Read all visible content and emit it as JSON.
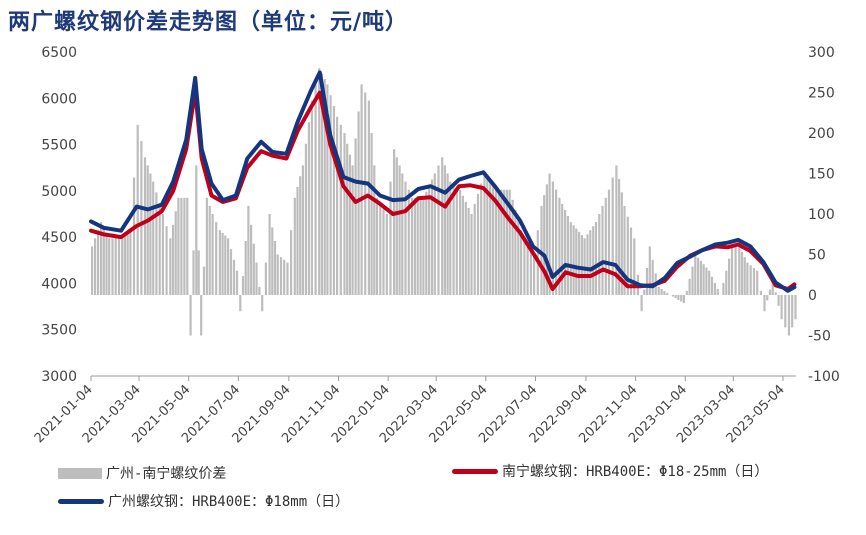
{
  "title": "两广螺纹钢价差走势图（单位：元/吨）",
  "colors": {
    "bar": "#bdbdbd",
    "nanning": "#c00018",
    "guangzhou": "#14357f",
    "title": "#1f3a7a"
  },
  "chart_data": {
    "type": "line",
    "title": "两广螺纹钢价差走势图（单位：元/吨）",
    "y_left": {
      "min": 3000,
      "max": 6500,
      "ticks": [
        "3000",
        "3500",
        "4000",
        "4500",
        "5000",
        "5500",
        "6000",
        "6500"
      ]
    },
    "y_right": {
      "min": -100,
      "max": 300,
      "ticks": [
        "-100",
        "-50",
        "0",
        "50",
        "100",
        "150",
        "200",
        "250",
        "300"
      ]
    },
    "x_range": [
      "2021-01-04",
      "2023-05-20"
    ],
    "x_ticks": [
      "2021-01-04",
      "2021-03-04",
      "2021-05-04",
      "2021-07-04",
      "2021-09-04",
      "2021-11-04",
      "2022-01-04",
      "2022-03-04",
      "2022-05-04",
      "2022-07-04",
      "2022-09-04",
      "2022-11-04",
      "2023-01-04",
      "2023-03-04",
      "2023-05-04"
    ],
    "series": [
      {
        "name": "南宁螺纹钢：HRB400E：Φ18-25mm（日）",
        "axis": "left",
        "points": [
          [
            "2021-01-04",
            4570
          ],
          [
            "2021-01-20",
            4530
          ],
          [
            "2021-02-10",
            4500
          ],
          [
            "2021-03-01",
            4620
          ],
          [
            "2021-03-15",
            4680
          ],
          [
            "2021-04-01",
            4780
          ],
          [
            "2021-04-15",
            5000
          ],
          [
            "2021-05-01",
            5450
          ],
          [
            "2021-05-12",
            6080
          ],
          [
            "2021-05-20",
            5350
          ],
          [
            "2021-06-01",
            4950
          ],
          [
            "2021-06-15",
            4880
          ],
          [
            "2021-07-01",
            4920
          ],
          [
            "2021-07-15",
            5250
          ],
          [
            "2021-08-01",
            5430
          ],
          [
            "2021-08-15",
            5380
          ],
          [
            "2021-09-01",
            5350
          ],
          [
            "2021-09-15",
            5650
          ],
          [
            "2021-10-01",
            5900
          ],
          [
            "2021-10-12",
            6060
          ],
          [
            "2021-10-25",
            5500
          ],
          [
            "2021-11-10",
            5050
          ],
          [
            "2021-11-25",
            4880
          ],
          [
            "2021-12-10",
            4950
          ],
          [
            "2021-12-25",
            4860
          ],
          [
            "2022-01-10",
            4750
          ],
          [
            "2022-01-25",
            4780
          ],
          [
            "2022-02-10",
            4920
          ],
          [
            "2022-02-25",
            4930
          ],
          [
            "2022-03-15",
            4830
          ],
          [
            "2022-04-01",
            5050
          ],
          [
            "2022-04-15",
            5060
          ],
          [
            "2022-05-01",
            5030
          ],
          [
            "2022-05-15",
            4900
          ],
          [
            "2022-06-01",
            4700
          ],
          [
            "2022-06-15",
            4550
          ],
          [
            "2022-07-01",
            4330
          ],
          [
            "2022-07-15",
            4130
          ],
          [
            "2022-07-25",
            3940
          ],
          [
            "2022-08-10",
            4120
          ],
          [
            "2022-08-25",
            4080
          ],
          [
            "2022-09-10",
            4080
          ],
          [
            "2022-09-25",
            4150
          ],
          [
            "2022-10-10",
            4100
          ],
          [
            "2022-10-25",
            3970
          ],
          [
            "2022-11-10",
            3970
          ],
          [
            "2022-11-25",
            3980
          ],
          [
            "2022-12-10",
            4030
          ],
          [
            "2022-12-25",
            4180
          ],
          [
            "2023-01-10",
            4300
          ],
          [
            "2023-01-25",
            4360
          ],
          [
            "2023-02-10",
            4400
          ],
          [
            "2023-02-25",
            4390
          ],
          [
            "2023-03-10",
            4420
          ],
          [
            "2023-03-25",
            4350
          ],
          [
            "2023-04-10",
            4210
          ],
          [
            "2023-04-25",
            3980
          ],
          [
            "2023-05-10",
            3940
          ],
          [
            "2023-05-18",
            3990
          ]
        ]
      },
      {
        "name": "广州螺纹钢：HRB400E：Φ18mm（日）",
        "axis": "left",
        "points": [
          [
            "2021-01-04",
            4670
          ],
          [
            "2021-01-20",
            4600
          ],
          [
            "2021-02-10",
            4570
          ],
          [
            "2021-03-01",
            4830
          ],
          [
            "2021-03-15",
            4800
          ],
          [
            "2021-04-01",
            4850
          ],
          [
            "2021-04-15",
            5100
          ],
          [
            "2021-05-01",
            5550
          ],
          [
            "2021-05-12",
            6220
          ],
          [
            "2021-05-20",
            5450
          ],
          [
            "2021-06-01",
            5080
          ],
          [
            "2021-06-15",
            4900
          ],
          [
            "2021-07-01",
            4950
          ],
          [
            "2021-07-15",
            5350
          ],
          [
            "2021-08-01",
            5530
          ],
          [
            "2021-08-15",
            5420
          ],
          [
            "2021-09-01",
            5400
          ],
          [
            "2021-09-15",
            5750
          ],
          [
            "2021-10-01",
            6080
          ],
          [
            "2021-10-12",
            6280
          ],
          [
            "2021-10-25",
            5600
          ],
          [
            "2021-11-10",
            5150
          ],
          [
            "2021-11-25",
            5100
          ],
          [
            "2021-12-10",
            5080
          ],
          [
            "2021-12-25",
            4950
          ],
          [
            "2022-01-10",
            4900
          ],
          [
            "2022-01-25",
            4910
          ],
          [
            "2022-02-10",
            5020
          ],
          [
            "2022-02-25",
            5050
          ],
          [
            "2022-03-15",
            4980
          ],
          [
            "2022-04-01",
            5120
          ],
          [
            "2022-04-15",
            5160
          ],
          [
            "2022-05-01",
            5200
          ],
          [
            "2022-05-15",
            5050
          ],
          [
            "2022-06-01",
            4850
          ],
          [
            "2022-06-15",
            4680
          ],
          [
            "2022-07-01",
            4400
          ],
          [
            "2022-07-15",
            4300
          ],
          [
            "2022-07-25",
            4070
          ],
          [
            "2022-08-10",
            4200
          ],
          [
            "2022-08-25",
            4170
          ],
          [
            "2022-09-10",
            4150
          ],
          [
            "2022-09-25",
            4230
          ],
          [
            "2022-10-10",
            4200
          ],
          [
            "2022-10-25",
            4040
          ],
          [
            "2022-11-10",
            3980
          ],
          [
            "2022-11-25",
            3970
          ],
          [
            "2022-12-10",
            4060
          ],
          [
            "2022-12-25",
            4220
          ],
          [
            "2023-01-10",
            4290
          ],
          [
            "2023-01-25",
            4360
          ],
          [
            "2023-02-10",
            4420
          ],
          [
            "2023-02-25",
            4440
          ],
          [
            "2023-03-10",
            4470
          ],
          [
            "2023-03-25",
            4400
          ],
          [
            "2023-04-10",
            4230
          ],
          [
            "2023-04-25",
            4010
          ],
          [
            "2023-05-10",
            3920
          ],
          [
            "2023-05-18",
            3960
          ]
        ]
      },
      {
        "name": "广州-南宁螺纹价差",
        "axis": "right",
        "type": "bar",
        "points": [
          [
            "2021-01-04",
            60
          ],
          [
            "2021-01-15",
            90
          ],
          [
            "2021-01-25",
            70
          ],
          [
            "2021-02-10",
            70
          ],
          [
            "2021-02-20",
            80
          ],
          [
            "2021-03-01",
            210
          ],
          [
            "2021-03-10",
            170
          ],
          [
            "2021-03-20",
            140
          ],
          [
            "2021-04-01",
            100
          ],
          [
            "2021-04-10",
            70
          ],
          [
            "2021-04-20",
            120
          ],
          [
            "2021-05-01",
            120
          ],
          [
            "2021-05-05",
            -50
          ],
          [
            "2021-05-12",
            160
          ],
          [
            "2021-05-18",
            -50
          ],
          [
            "2021-05-25",
            120
          ],
          [
            "2021-06-01",
            100
          ],
          [
            "2021-06-10",
            80
          ],
          [
            "2021-06-20",
            70
          ],
          [
            "2021-07-01",
            30
          ],
          [
            "2021-07-05",
            -20
          ],
          [
            "2021-07-15",
            110
          ],
          [
            "2021-07-25",
            40
          ],
          [
            "2021-08-01",
            -20
          ],
          [
            "2021-08-10",
            100
          ],
          [
            "2021-08-20",
            50
          ],
          [
            "2021-09-01",
            40
          ],
          [
            "2021-09-10",
            120
          ],
          [
            "2021-09-20",
            160
          ],
          [
            "2021-10-01",
            240
          ],
          [
            "2021-10-10",
            280
          ],
          [
            "2021-10-20",
            260
          ],
          [
            "2021-11-01",
            220
          ],
          [
            "2021-11-10",
            200
          ],
          [
            "2021-11-20",
            160
          ],
          [
            "2021-12-01",
            260
          ],
          [
            "2021-12-10",
            240
          ],
          [
            "2021-12-20",
            120
          ],
          [
            "2022-01-01",
            100
          ],
          [
            "2022-01-10",
            180
          ],
          [
            "2022-01-20",
            150
          ],
          [
            "2022-02-01",
            120
          ],
          [
            "2022-02-15",
            120
          ],
          [
            "2022-03-01",
            150
          ],
          [
            "2022-03-10",
            170
          ],
          [
            "2022-03-20",
            140
          ],
          [
            "2022-04-01",
            130
          ],
          [
            "2022-04-15",
            100
          ],
          [
            "2022-05-01",
            150
          ],
          [
            "2022-05-15",
            130
          ],
          [
            "2022-06-01",
            130
          ],
          [
            "2022-06-15",
            80
          ],
          [
            "2022-07-01",
            50
          ],
          [
            "2022-07-10",
            110
          ],
          [
            "2022-07-20",
            150
          ],
          [
            "2022-08-01",
            120
          ],
          [
            "2022-08-15",
            90
          ],
          [
            "2022-09-01",
            70
          ],
          [
            "2022-09-15",
            90
          ],
          [
            "2022-10-01",
            130
          ],
          [
            "2022-10-10",
            160
          ],
          [
            "2022-10-20",
            110
          ],
          [
            "2022-11-01",
            70
          ],
          [
            "2022-11-10",
            -20
          ],
          [
            "2022-11-20",
            60
          ],
          [
            "2022-12-01",
            10
          ],
          [
            "2022-12-15",
            0
          ],
          [
            "2023-01-01",
            -10
          ],
          [
            "2023-01-15",
            50
          ],
          [
            "2023-02-01",
            30
          ],
          [
            "2023-02-15",
            0
          ],
          [
            "2023-03-01",
            60
          ],
          [
            "2023-03-10",
            60
          ],
          [
            "2023-03-20",
            40
          ],
          [
            "2023-04-01",
            30
          ],
          [
            "2023-04-10",
            -20
          ],
          [
            "2023-04-20",
            20
          ],
          [
            "2023-05-01",
            -30
          ],
          [
            "2023-05-10",
            -50
          ],
          [
            "2023-05-18",
            -30
          ]
        ]
      }
    ],
    "legend_position": "bottom"
  },
  "legend": {
    "bar_label": "广州-南宁螺纹价差",
    "nanning_label": "南宁螺纹钢：HRB400E：Φ18-25mm（日）",
    "guangzhou_label": "广州螺纹钢：HRB400E：Φ18mm（日）"
  }
}
